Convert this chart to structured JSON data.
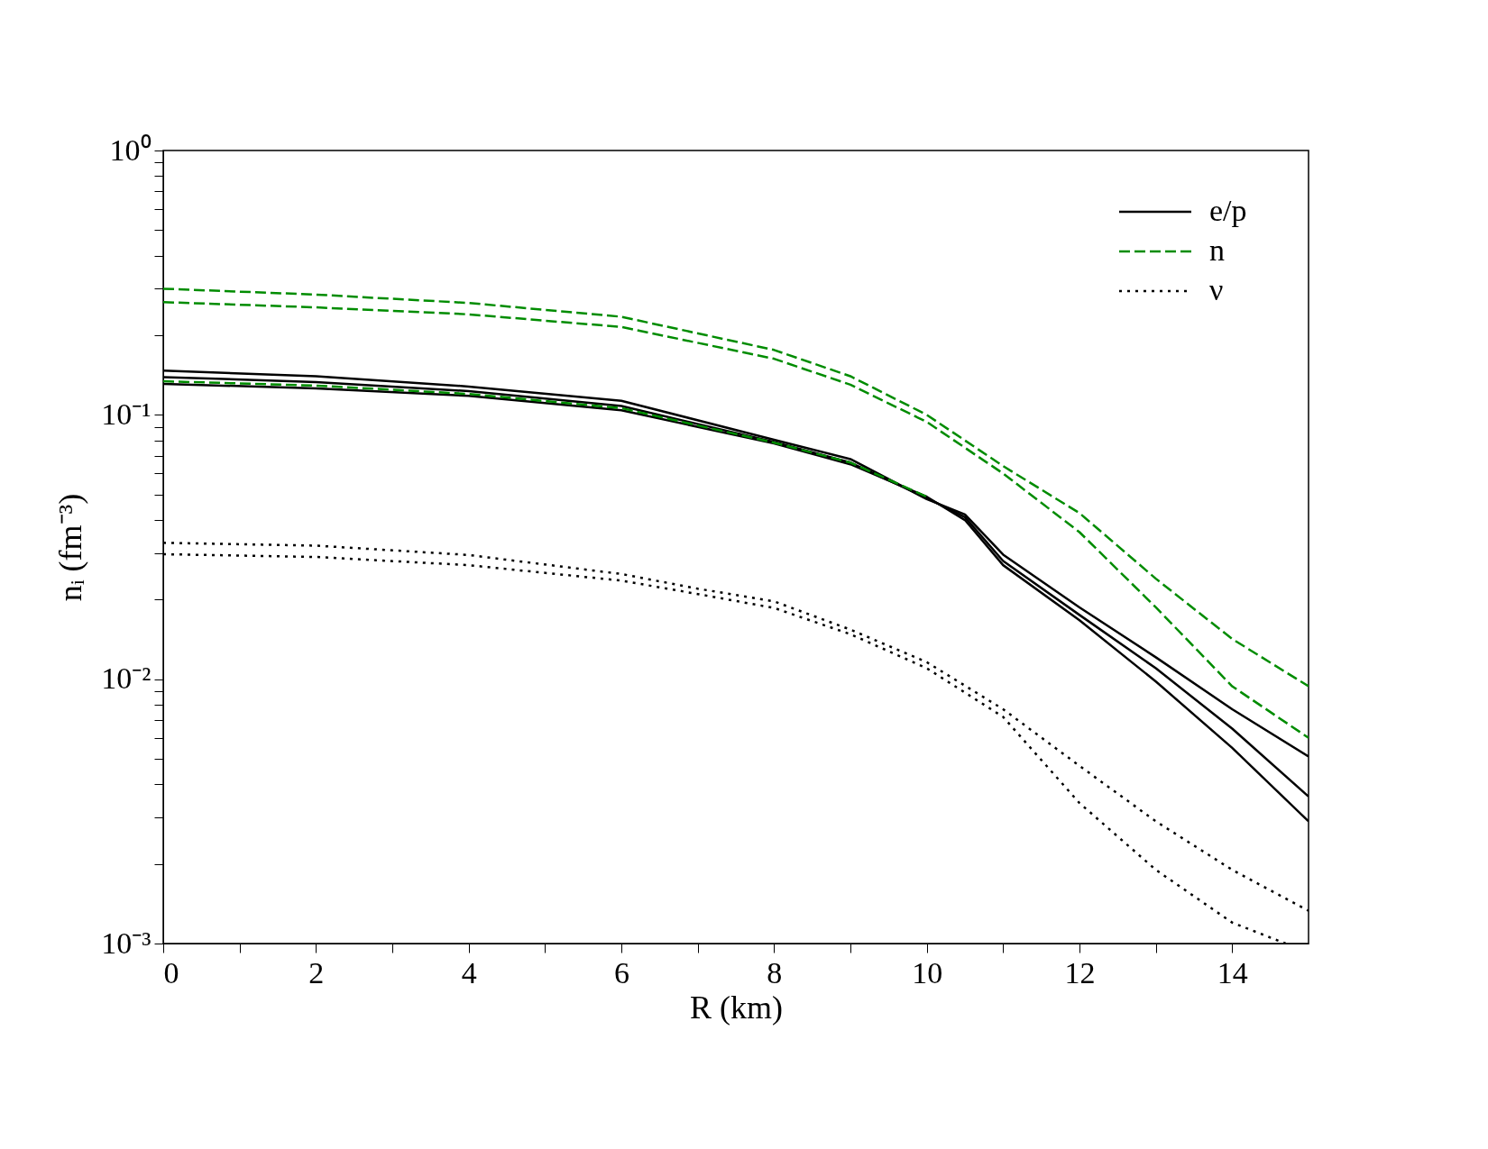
{
  "chart_data": {
    "type": "line",
    "xlabel": "R (km)",
    "ylabel": "nᵢ (fm⁻³)",
    "log": "y",
    "xlim": [
      0,
      15
    ],
    "ylim": [
      0.001,
      1
    ],
    "xticks": [
      0,
      {
        "value": 1,
        "label": null
      },
      2,
      {
        "value": 3,
        "label": null
      },
      4,
      {
        "value": 5,
        "label": null
      },
      6,
      {
        "value": 7,
        "label": null
      },
      8,
      {
        "value": 9,
        "label": null
      },
      10,
      {
        "value": 11,
        "label": null
      },
      12,
      {
        "value": 13,
        "label": null
      },
      14
    ],
    "yticks": [
      {
        "value": 0.001,
        "label": "10⁻³"
      },
      {
        "value": 0.002,
        "label": null
      },
      {
        "value": 0.003,
        "label": null
      },
      {
        "value": 0.004,
        "label": null
      },
      {
        "value": 0.005,
        "label": null
      },
      {
        "value": 0.006,
        "label": null
      },
      {
        "value": 0.007,
        "label": null
      },
      {
        "value": 0.008,
        "label": null
      },
      {
        "value": 0.009,
        "label": null
      },
      {
        "value": 0.01,
        "label": "10⁻²"
      },
      {
        "value": 0.02,
        "label": null
      },
      {
        "value": 0.03,
        "label": null
      },
      {
        "value": 0.04,
        "label": null
      },
      {
        "value": 0.05,
        "label": null
      },
      {
        "value": 0.06,
        "label": null
      },
      {
        "value": 0.07,
        "label": null
      },
      {
        "value": 0.08,
        "label": null
      },
      {
        "value": 0.09,
        "label": null
      },
      {
        "value": 0.1,
        "label": "10⁻¹"
      },
      {
        "value": 0.2,
        "label": null
      },
      {
        "value": 0.3,
        "label": null
      },
      {
        "value": 0.4,
        "label": null
      },
      {
        "value": 0.5,
        "label": null
      },
      {
        "value": 0.6,
        "label": null
      },
      {
        "value": 0.7,
        "label": null
      },
      {
        "value": 0.8,
        "label": null
      },
      {
        "value": 0.9,
        "label": null
      },
      {
        "value": 1,
        "label": "10⁰"
      }
    ],
    "grid": false,
    "legend": "top right",
    "series": [
      {
        "name": "e/p",
        "color": "#000000",
        "line_style": "solid",
        "x": [
          0,
          2,
          4,
          6,
          8,
          9,
          10,
          10.5,
          11,
          12,
          13,
          14,
          15
        ],
        "values": [
          0.147,
          0.14,
          0.128,
          0.113,
          0.0805,
          0.068,
          0.048,
          0.042,
          0.0296,
          0.0187,
          0.0121,
          0.0077,
          0.0051
        ]
      },
      {
        "color": "#000000",
        "line_style": "solid",
        "x": [
          0,
          2,
          4,
          6,
          8,
          9,
          10,
          10.5,
          11,
          12,
          13,
          14,
          15
        ],
        "values": [
          0.139,
          0.133,
          0.123,
          0.108,
          0.079,
          0.066,
          0.0485,
          0.041,
          0.028,
          0.0175,
          0.011,
          0.0065,
          0.0036
        ]
      },
      {
        "color": "#000000",
        "line_style": "solid",
        "x": [
          0,
          2,
          4,
          6,
          8,
          9,
          10,
          10.5,
          11,
          12,
          13,
          14,
          15
        ],
        "values": [
          0.131,
          0.126,
          0.118,
          0.104,
          0.078,
          0.065,
          0.049,
          0.04,
          0.027,
          0.0167,
          0.0098,
          0.0055,
          0.0029
        ]
      },
      {
        "name": "n",
        "color": "#008c00",
        "line_style": "dashed",
        "x": [
          0,
          2,
          4,
          6,
          8,
          9,
          10,
          11,
          12,
          13,
          14,
          15
        ],
        "values": [
          0.3,
          0.285,
          0.265,
          0.235,
          0.176,
          0.14,
          0.1,
          0.064,
          0.0425,
          0.024,
          0.0142,
          0.0094
        ]
      },
      {
        "color": "#008c00",
        "line_style": "dashed",
        "x": [
          0,
          2,
          4,
          6,
          8,
          9,
          10,
          11,
          12,
          13,
          14,
          15
        ],
        "values": [
          0.267,
          0.255,
          0.24,
          0.215,
          0.163,
          0.13,
          0.094,
          0.06,
          0.036,
          0.0187,
          0.0094,
          0.006
        ]
      },
      {
        "color": "#008c00",
        "line_style": "dashed",
        "x": [
          0,
          2,
          4,
          6,
          8,
          9,
          10
        ],
        "values": [
          0.134,
          0.129,
          0.12,
          0.106,
          0.0785,
          0.066,
          0.049
        ]
      },
      {
        "name": "ν",
        "color": "#000000",
        "line_style": "dotted",
        "x": [
          0,
          2,
          4,
          6,
          7,
          8,
          9,
          10,
          11,
          12,
          13,
          14,
          15
        ],
        "values": [
          0.0328,
          0.032,
          0.0295,
          0.025,
          0.022,
          0.0197,
          0.0154,
          0.0116,
          0.0077,
          0.0047,
          0.0029,
          0.0019,
          0.00133
        ]
      },
      {
        "color": "#000000",
        "line_style": "dotted",
        "x": [
          0,
          2,
          4,
          6,
          7,
          8,
          9,
          10,
          11,
          12,
          13,
          14,
          14.7
        ],
        "values": [
          0.0297,
          0.029,
          0.027,
          0.0236,
          0.021,
          0.0186,
          0.0148,
          0.011,
          0.0072,
          0.0034,
          0.0019,
          0.0012,
          0.001
        ]
      }
    ]
  }
}
